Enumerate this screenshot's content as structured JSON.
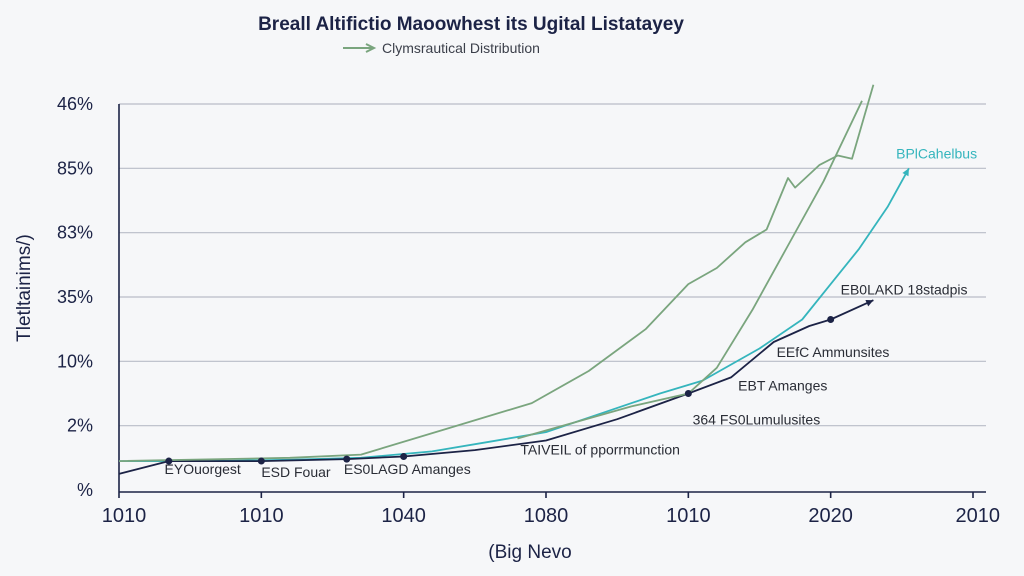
{
  "chart_data": {
    "type": "line",
    "title": "Breall Altifictio Maoowhest its Ugital Listatayey",
    "legend_label": "Clymsrautical Distribution",
    "ylabel": "Tletltainims/)",
    "xlabel": "(Big Nevo",
    "y_ticks": [
      "46%",
      "85%",
      "83%",
      "35%",
      "10%",
      "2%",
      "%"
    ],
    "x_ticks": [
      "1010",
      "1010",
      "1040",
      "1080",
      "1010",
      "2020",
      "2010"
    ],
    "x_index_range": [
      0,
      6
    ],
    "y_level_range": [
      0,
      6
    ],
    "grid": true,
    "series": [
      {
        "name": "BPlCahelbus",
        "color": "#35b5bd",
        "points": [
          [
            0,
            0.45
          ],
          [
            0.6,
            0.45
          ],
          [
            1.2,
            0.47
          ],
          [
            1.7,
            0.5
          ],
          [
            2.2,
            0.6
          ],
          [
            2.6,
            0.75
          ],
          [
            3.0,
            0.9
          ],
          [
            3.4,
            1.2
          ],
          [
            3.8,
            1.5
          ],
          [
            4.1,
            1.7
          ],
          [
            4.5,
            2.2
          ],
          [
            4.8,
            2.65
          ],
          [
            5.0,
            3.2
          ],
          [
            5.2,
            3.75
          ],
          [
            5.4,
            4.4
          ],
          [
            5.55,
            5.0
          ]
        ]
      },
      {
        "name": "EB0LAKD 18stadpis",
        "color": "#1c2346",
        "points": [
          [
            0,
            0.25
          ],
          [
            0.35,
            0.45
          ],
          [
            1.0,
            0.45
          ],
          [
            1.6,
            0.48
          ],
          [
            2.0,
            0.52
          ],
          [
            2.5,
            0.62
          ],
          [
            3.0,
            0.77
          ],
          [
            3.5,
            1.1
          ],
          [
            4.0,
            1.5
          ],
          [
            4.3,
            1.75
          ],
          [
            4.6,
            2.3
          ],
          [
            4.85,
            2.55
          ],
          [
            5.0,
            2.65
          ],
          [
            5.3,
            2.95
          ]
        ]
      },
      {
        "name": "",
        "color": "#7aa57e",
        "points": [
          [
            0,
            0.45
          ],
          [
            1.2,
            0.5
          ],
          [
            1.7,
            0.55
          ],
          [
            2.3,
            0.95
          ],
          [
            2.9,
            1.35
          ],
          [
            3.3,
            1.85
          ],
          [
            3.7,
            2.5
          ],
          [
            4.0,
            3.2
          ],
          [
            4.2,
            3.45
          ],
          [
            4.4,
            3.85
          ],
          [
            4.55,
            4.05
          ],
          [
            4.7,
            4.85
          ],
          [
            4.75,
            4.7
          ],
          [
            4.92,
            5.05
          ],
          [
            5.05,
            5.2
          ],
          [
            5.15,
            5.15
          ],
          [
            5.3,
            6.3
          ]
        ]
      },
      {
        "name": "",
        "color": "#7aa57e",
        "points": [
          [
            2.8,
            0.8
          ],
          [
            3.6,
            1.3
          ],
          [
            4.0,
            1.5
          ],
          [
            4.2,
            1.9
          ],
          [
            4.45,
            2.8
          ],
          [
            4.7,
            3.8
          ],
          [
            4.95,
            4.8
          ],
          [
            5.22,
            6.05
          ]
        ]
      }
    ],
    "markers": [
      [
        0.35,
        0.45
      ],
      [
        1.0,
        0.45
      ],
      [
        1.6,
        0.48
      ],
      [
        2.0,
        0.52
      ],
      [
        4.0,
        1.5
      ],
      [
        5.0,
        2.65
      ]
    ],
    "annotations": [
      {
        "text": "EYOuorgest",
        "x": 0.32,
        "y": 0.25
      },
      {
        "text": "ESD Fouar",
        "x": 1.0,
        "y": 0.2
      },
      {
        "text": "ES0LAGD Amanges",
        "x": 1.58,
        "y": 0.25
      },
      {
        "text": "TAIVEIL of pporrmunction",
        "x": 2.82,
        "y": 0.55
      },
      {
        "text": "364 FS0Lumulusites",
        "x": 4.03,
        "y": 1.02
      },
      {
        "text": "EBT Amanges",
        "x": 4.35,
        "y": 1.55
      },
      {
        "text": "EEfC Ammunsites",
        "x": 4.62,
        "y": 2.07
      },
      {
        "text": "EB0LAKD 18stadpis",
        "x": 5.07,
        "y": 3.04
      },
      {
        "text": "BPlCahelbus",
        "x": 5.46,
        "y": 5.15
      }
    ]
  }
}
